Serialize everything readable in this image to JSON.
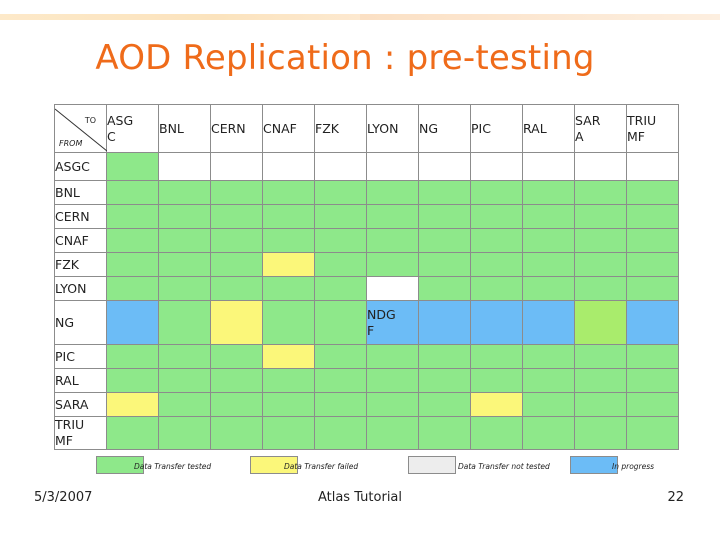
{
  "slide": {
    "title": "AOD Replication : pre-testing",
    "footer_date": "5/3/2007",
    "footer_center": "Atlas Tutorial",
    "page_number": "22"
  },
  "colors": {
    "green": "#8ee88a",
    "yellow": "#fbf77a",
    "gray": "#ededed",
    "blue": "#6cbcf6",
    "lime": "#a9ec6c",
    "white": "#ffffff",
    "title": "#ef6b1a"
  },
  "matrix": {
    "corner_to": "TO",
    "corner_from": "FROM",
    "columns": [
      "ASG\nC",
      "BNL",
      "CERN",
      "CNAF",
      "FZK",
      "LYON",
      "NG",
      "PIC",
      "RAL",
      "SAR\nA",
      "TRIU\nMF"
    ],
    "rows": [
      {
        "label": "ASGC",
        "cells": [
          "green",
          "white",
          "white",
          "white",
          "white",
          "white",
          "white",
          "white",
          "white",
          "white",
          "white"
        ]
      },
      {
        "label": "BNL",
        "cells": [
          "green",
          "green",
          "green",
          "green",
          "green",
          "green",
          "green",
          "green",
          "green",
          "green",
          "green"
        ]
      },
      {
        "label": "CERN",
        "cells": [
          "green",
          "green",
          "green",
          "green",
          "green",
          "green",
          "green",
          "green",
          "green",
          "green",
          "green"
        ]
      },
      {
        "label": "CNAF",
        "cells": [
          "green",
          "green",
          "green",
          "green",
          "green",
          "green",
          "green",
          "green",
          "green",
          "green",
          "green"
        ]
      },
      {
        "label": "FZK",
        "cells": [
          "green",
          "green",
          "green",
          "yellow",
          "green",
          "green",
          "green",
          "green",
          "green",
          "green",
          "green"
        ]
      },
      {
        "label": "LYON",
        "cells": [
          "green",
          "green",
          "green",
          "green",
          "green",
          "white",
          "green",
          "green",
          "green",
          "green",
          "green"
        ]
      },
      {
        "label": "NG",
        "cells": [
          "blue",
          "green",
          "yellow",
          "green",
          "green",
          "blue",
          "blue",
          "blue",
          "blue",
          "lime",
          "blue"
        ],
        "notes": {
          "5": "NDG\nF"
        }
      },
      {
        "label": "PIC",
        "cells": [
          "green",
          "green",
          "green",
          "yellow",
          "green",
          "green",
          "green",
          "green",
          "green",
          "green",
          "green"
        ]
      },
      {
        "label": "RAL",
        "cells": [
          "green",
          "green",
          "green",
          "green",
          "green",
          "green",
          "green",
          "green",
          "green",
          "green",
          "green"
        ]
      },
      {
        "label": "SARA",
        "cells": [
          "yellow",
          "green",
          "green",
          "green",
          "green",
          "green",
          "green",
          "yellow",
          "green",
          "green",
          "green"
        ]
      },
      {
        "label": "TRIU\nMF",
        "cells": [
          "green",
          "green",
          "green",
          "green",
          "green",
          "green",
          "green",
          "green",
          "green",
          "green",
          "green"
        ]
      }
    ]
  },
  "legend": [
    {
      "color": "green",
      "label": "Data Transfer tested"
    },
    {
      "color": "yellow",
      "label": "Data Transfer failed"
    },
    {
      "color": "gray",
      "label": "Data Transfer not tested"
    },
    {
      "color": "blue",
      "label": "In progress"
    }
  ]
}
